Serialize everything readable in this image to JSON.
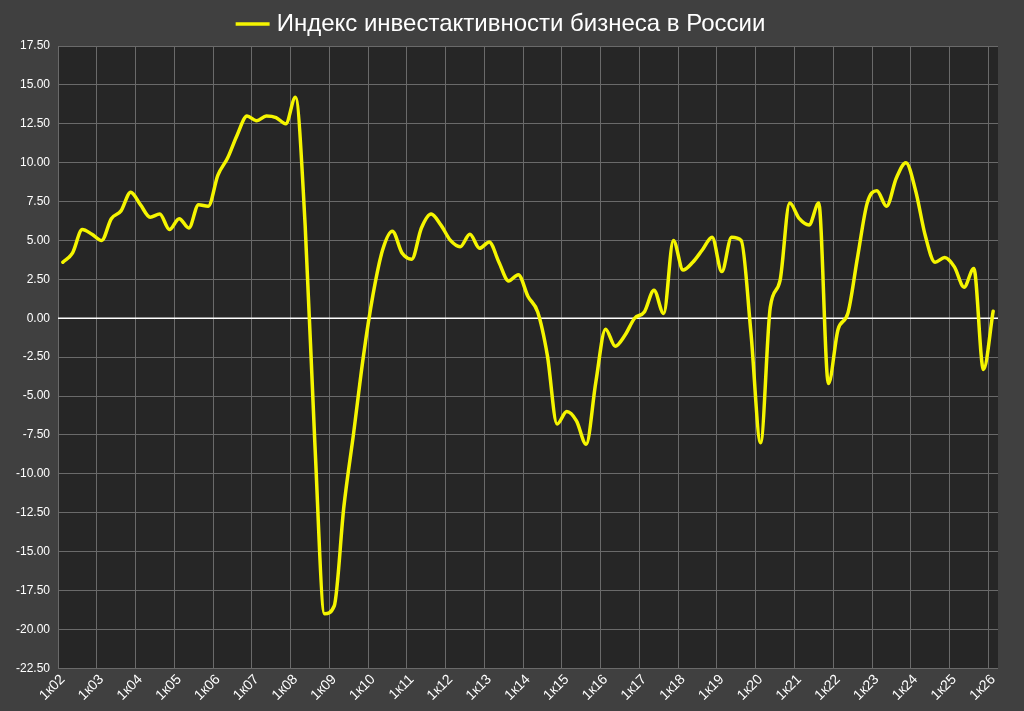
{
  "chart_data": {
    "type": "line",
    "categories": [
      "1к02",
      null,
      null,
      null,
      "1к03",
      null,
      null,
      null,
      "1к04",
      null,
      null,
      null,
      "1к05",
      null,
      null,
      null,
      "1к06",
      null,
      null,
      null,
      "1к07",
      null,
      null,
      null,
      "1к08",
      null,
      null,
      null,
      "1к09",
      null,
      null,
      null,
      "1к10",
      null,
      null,
      null,
      "1к11",
      null,
      null,
      null,
      "1к12",
      null,
      null,
      null,
      "1к13",
      null,
      null,
      null,
      "1к14",
      null,
      null,
      null,
      "1к15",
      null,
      null,
      null,
      "1к16",
      null,
      null,
      null,
      "1к17",
      null,
      null,
      null,
      "1к18",
      null,
      null,
      null,
      "1к19",
      null,
      null,
      null,
      "1к20",
      null,
      null,
      null,
      "1к21",
      null,
      null,
      null,
      "1к22",
      null,
      null,
      null,
      "1к23",
      null,
      null,
      null,
      "1к24",
      null,
      null,
      null,
      "1к25",
      null,
      null,
      null,
      "1к26"
    ],
    "series": [
      {
        "name": "Индекс инвестактивности бизнеса в России",
        "color": "#f5f500",
        "values": [
          3.6,
          4.2,
          5.7,
          5.4,
          5.0,
          6.4,
          6.9,
          8.1,
          7.3,
          6.5,
          6.7,
          5.7,
          6.4,
          5.8,
          7.3,
          7.2,
          9.2,
          10.3,
          11.8,
          13.0,
          12.7,
          13.0,
          12.9,
          12.5,
          14.2,
          6.0,
          -8.0,
          -19.0,
          -18.5,
          -12.1,
          -7.4,
          -2.5,
          1.5,
          4.4,
          5.6,
          4.2,
          3.8,
          5.8,
          6.7,
          6.0,
          5.0,
          4.6,
          5.4,
          4.5,
          4.9,
          3.6,
          2.4,
          2.8,
          1.4,
          0.4,
          -2.4,
          -6.8,
          -6.0,
          -6.6,
          -8.1,
          -4.1,
          -0.7,
          -1.8,
          -1.1,
          0.0,
          0.4,
          1.8,
          0.3,
          5.0,
          3.1,
          3.6,
          4.4,
          5.2,
          3.0,
          5.2,
          5.0,
          -0.9,
          -8.0,
          0.7,
          2.4,
          7.4,
          6.4,
          6.0,
          7.4,
          -4.2,
          -0.7,
          0.3,
          3.9,
          7.4,
          8.2,
          7.2,
          9.0,
          10.0,
          8.2,
          5.3,
          3.6,
          3.9,
          3.3,
          2.0,
          3.2,
          -3.3,
          0.45
        ]
      }
    ],
    "ylim": [
      -22.5,
      17.5
    ],
    "yticks": [
      {
        "value": 17.5,
        "label": "17.50"
      },
      {
        "value": 15,
        "label": "15.00"
      },
      {
        "value": 12.5,
        "label": "12.50"
      },
      {
        "value": 10,
        "label": "10.00"
      },
      {
        "value": 7.5,
        "label": "7.50"
      },
      {
        "value": 5,
        "label": "5.00"
      },
      {
        "value": 2.5,
        "label": "2.50"
      },
      {
        "value": 0,
        "label": "0.00"
      },
      {
        "value": -2.5,
        "label": "-2.50"
      },
      {
        "value": -5,
        "label": "-5.00"
      },
      {
        "value": -7.5,
        "label": "-7.50"
      },
      {
        "value": -10,
        "label": "-10.00"
      },
      {
        "value": -12.5,
        "label": "-12.50"
      },
      {
        "value": -15,
        "label": "-15.00"
      },
      {
        "value": -17.5,
        "label": "-17.50"
      },
      {
        "value": -20,
        "label": "-20.00"
      },
      {
        "value": -22.5,
        "label": "-22.50"
      }
    ],
    "ref_lines": [
      {
        "axis": "y",
        "value": 0,
        "color": "#ffffff"
      }
    ],
    "grid": true,
    "legend": "top",
    "marker": "none",
    "line_style": "solid"
  }
}
